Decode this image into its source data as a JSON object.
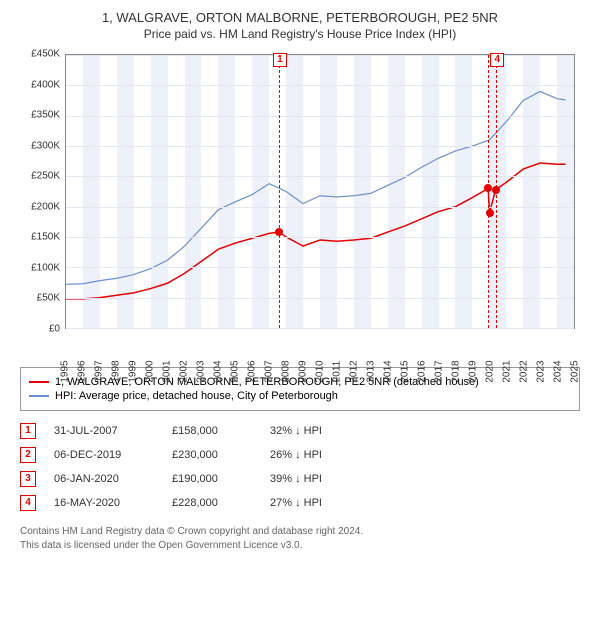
{
  "title": "1, WALGRAVE, ORTON MALBORNE, PETERBOROUGH, PE2 5NR",
  "subtitle": "Price paid vs. HM Land Registry's House Price Index (HPI)",
  "chart": {
    "type": "line",
    "x_axis": {
      "min": 1995,
      "max": 2025,
      "ticks": [
        1995,
        1996,
        1997,
        1998,
        1999,
        2000,
        2001,
        2002,
        2003,
        2004,
        2005,
        2006,
        2007,
        2008,
        2009,
        2010,
        2011,
        2012,
        2013,
        2014,
        2015,
        2016,
        2017,
        2018,
        2019,
        2020,
        2021,
        2022,
        2023,
        2024,
        2025
      ]
    },
    "y_axis": {
      "min": 0,
      "max": 450000,
      "ticks": [
        0,
        50000,
        100000,
        150000,
        200000,
        250000,
        300000,
        350000,
        400000,
        450000
      ],
      "tick_labels": [
        "£0",
        "£50K",
        "£100K",
        "£150K",
        "£200K",
        "£250K",
        "£300K",
        "£350K",
        "£400K",
        "£450K"
      ]
    },
    "grid_color": "#e6e6f2",
    "band_color": "#eef1f9",
    "background_color": "#ffffff",
    "series": [
      {
        "name": "1, WALGRAVE, ORTON MALBORNE, PETERBOROUGH, PE2 5NR (detached house)",
        "color": "#e60000",
        "width": 1.5,
        "points": [
          [
            1995,
            48000
          ],
          [
            1996,
            48000
          ],
          [
            1997,
            50000
          ],
          [
            1998,
            54000
          ],
          [
            1999,
            58000
          ],
          [
            2000,
            65000
          ],
          [
            2001,
            74000
          ],
          [
            2002,
            90000
          ],
          [
            2003,
            110000
          ],
          [
            2004,
            130000
          ],
          [
            2005,
            140000
          ],
          [
            2006,
            148000
          ],
          [
            2007,
            156000
          ],
          [
            2007.58,
            158000
          ],
          [
            2008,
            150000
          ],
          [
            2009,
            135000
          ],
          [
            2010,
            145000
          ],
          [
            2011,
            143000
          ],
          [
            2012,
            145000
          ],
          [
            2013,
            148000
          ],
          [
            2014,
            158000
          ],
          [
            2015,
            168000
          ],
          [
            2016,
            180000
          ],
          [
            2017,
            192000
          ],
          [
            2018,
            200000
          ],
          [
            2019,
            215000
          ],
          [
            2019.93,
            230000
          ],
          [
            2020.01,
            190000
          ],
          [
            2020.37,
            228000
          ],
          [
            2021,
            240000
          ],
          [
            2022,
            262000
          ],
          [
            2023,
            272000
          ],
          [
            2024,
            270000
          ],
          [
            2024.5,
            270000
          ]
        ]
      },
      {
        "name": "HPI: Average price, detached house, City of Peterborough",
        "color": "#6b8fd4",
        "width": 1.2,
        "points": [
          [
            1995,
            72000
          ],
          [
            1996,
            73000
          ],
          [
            1997,
            78000
          ],
          [
            1998,
            82000
          ],
          [
            1999,
            88000
          ],
          [
            2000,
            98000
          ],
          [
            2001,
            112000
          ],
          [
            2002,
            135000
          ],
          [
            2003,
            165000
          ],
          [
            2004,
            195000
          ],
          [
            2005,
            208000
          ],
          [
            2006,
            220000
          ],
          [
            2007,
            238000
          ],
          [
            2008,
            225000
          ],
          [
            2009,
            205000
          ],
          [
            2010,
            218000
          ],
          [
            2011,
            216000
          ],
          [
            2012,
            218000
          ],
          [
            2013,
            222000
          ],
          [
            2014,
            235000
          ],
          [
            2015,
            248000
          ],
          [
            2016,
            265000
          ],
          [
            2017,
            280000
          ],
          [
            2018,
            292000
          ],
          [
            2019,
            300000
          ],
          [
            2020,
            310000
          ],
          [
            2021,
            340000
          ],
          [
            2022,
            375000
          ],
          [
            2023,
            390000
          ],
          [
            2024,
            378000
          ],
          [
            2024.5,
            376000
          ]
        ]
      }
    ],
    "sale_markers": [
      {
        "n": "1",
        "x": 2007.58,
        "y": 158000
      },
      {
        "n": "2",
        "x": 2019.93,
        "y": 230000
      },
      {
        "n": "3",
        "x": 2020.01,
        "y": 190000
      },
      {
        "n": "4",
        "x": 2020.37,
        "y": 228000
      }
    ],
    "top_label_markers": [
      {
        "n": "1",
        "x": 2007.58
      },
      {
        "n": "4",
        "x": 2020.37
      }
    ],
    "reflines": [
      2007.58,
      2019.93,
      2020.37
    ]
  },
  "legend": {
    "items": [
      {
        "color": "#e60000",
        "label": "1, WALGRAVE, ORTON MALBORNE, PETERBOROUGH, PE2 5NR (detached house)"
      },
      {
        "color": "#6b8fd4",
        "label": "HPI: Average price, detached house, City of Peterborough"
      }
    ]
  },
  "sales": [
    {
      "n": "1",
      "date": "31-JUL-2007",
      "price": "£158,000",
      "delta": "32% ↓ HPI"
    },
    {
      "n": "2",
      "date": "06-DEC-2019",
      "price": "£230,000",
      "delta": "26% ↓ HPI"
    },
    {
      "n": "3",
      "date": "06-JAN-2020",
      "price": "£190,000",
      "delta": "39% ↓ HPI"
    },
    {
      "n": "4",
      "date": "16-MAY-2020",
      "price": "£228,000",
      "delta": "27% ↓ HPI"
    }
  ],
  "footer": {
    "line1": "Contains HM Land Registry data © Crown copyright and database right 2024.",
    "line2": "This data is licensed under the Open Government Licence v3.0."
  }
}
